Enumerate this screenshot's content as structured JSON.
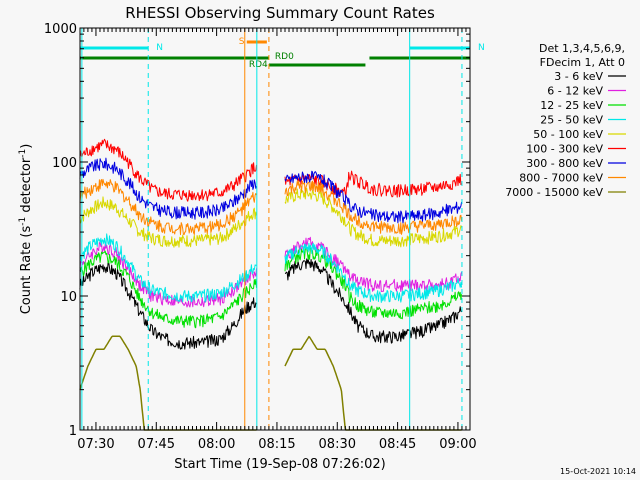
{
  "chart_data": {
    "type": "line",
    "title": "RHESSI Observing Summary Count Rates",
    "xlabel": "Start Time (19-Sep-08 07:26:02)",
    "ylabel": "Count Rate (s⁻¹ detector⁻¹)",
    "y_scale": "log",
    "ylim": [
      1,
      1000
    ],
    "xlim": [
      "07:26:02",
      "09:03:00"
    ],
    "x_ticks": [
      "07:30",
      "07:45",
      "08:00",
      "08:15",
      "08:30",
      "08:45",
      "09:00"
    ],
    "y_ticks": [
      "1",
      "10",
      "100",
      "1000"
    ],
    "legend_header": [
      "Det 1,3,4,5,6,9,",
      "FDecim 1, Att 0"
    ],
    "legend_position": "right",
    "footer_date": "15-Oct-2021 10:14",
    "segments": [
      {
        "start": "07:26",
        "end": "08:10"
      },
      {
        "start": "08:17",
        "end": "09:01"
      }
    ],
    "series": [
      {
        "name": "3 - 6 keV",
        "color": "#000000",
        "seg1": [
          [
            0,
            12
          ],
          [
            3,
            15
          ],
          [
            6,
            17
          ],
          [
            9,
            15
          ],
          [
            12,
            11
          ],
          [
            15,
            7.5
          ],
          [
            18,
            5.5
          ],
          [
            21,
            4.8
          ],
          [
            25,
            4.5
          ],
          [
            30,
            4.5
          ],
          [
            35,
            4.8
          ],
          [
            38,
            6
          ],
          [
            41,
            8
          ],
          [
            43,
            9
          ]
        ],
        "seg2": [
          [
            0,
            14
          ],
          [
            3,
            17
          ],
          [
            6,
            18
          ],
          [
            9,
            16
          ],
          [
            12,
            12
          ],
          [
            15,
            9
          ],
          [
            16,
            8
          ],
          [
            18,
            6
          ],
          [
            22,
            5
          ],
          [
            28,
            5
          ],
          [
            34,
            5.5
          ],
          [
            38,
            6
          ],
          [
            42,
            7
          ],
          [
            44,
            8
          ]
        ]
      },
      {
        "name": "6 - 12 keV",
        "color": "#e020e0",
        "seg1": [
          [
            0,
            17
          ],
          [
            3,
            21
          ],
          [
            6,
            24
          ],
          [
            9,
            21
          ],
          [
            12,
            16
          ],
          [
            15,
            12
          ],
          [
            18,
            10
          ],
          [
            21,
            9.5
          ],
          [
            25,
            9
          ],
          [
            30,
            9
          ],
          [
            35,
            9.5
          ],
          [
            38,
            11
          ],
          [
            41,
            13
          ],
          [
            43,
            15
          ]
        ],
        "seg2": [
          [
            0,
            20
          ],
          [
            3,
            23
          ],
          [
            6,
            25
          ],
          [
            9,
            23
          ],
          [
            12,
            19
          ],
          [
            15,
            16
          ],
          [
            16,
            14
          ],
          [
            18,
            13
          ],
          [
            22,
            12
          ],
          [
            28,
            12
          ],
          [
            34,
            12
          ],
          [
            38,
            12
          ],
          [
            42,
            13
          ],
          [
            44,
            14
          ]
        ]
      },
      {
        "name": "12 - 25 keV",
        "color": "#00e000",
        "seg1": [
          [
            0,
            15
          ],
          [
            3,
            18
          ],
          [
            6,
            20
          ],
          [
            9,
            18
          ],
          [
            12,
            14
          ],
          [
            15,
            9.5
          ],
          [
            18,
            7.5
          ],
          [
            21,
            6.8
          ],
          [
            25,
            6.5
          ],
          [
            30,
            6.5
          ],
          [
            35,
            7
          ],
          [
            38,
            8.5
          ],
          [
            41,
            10.5
          ],
          [
            43,
            12
          ]
        ],
        "seg2": [
          [
            0,
            17
          ],
          [
            3,
            20
          ],
          [
            6,
            21
          ],
          [
            9,
            20
          ],
          [
            12,
            16
          ],
          [
            15,
            12
          ],
          [
            16,
            10
          ],
          [
            18,
            8.5
          ],
          [
            22,
            7.5
          ],
          [
            28,
            7.5
          ],
          [
            34,
            8
          ],
          [
            38,
            8.5
          ],
          [
            42,
            9.5
          ],
          [
            44,
            10.5
          ]
        ]
      },
      {
        "name": "25 - 50 keV",
        "color": "#00e8e8",
        "seg1": [
          [
            0,
            20
          ],
          [
            3,
            24
          ],
          [
            6,
            27
          ],
          [
            9,
            24
          ],
          [
            12,
            18
          ],
          [
            15,
            13
          ],
          [
            18,
            11
          ],
          [
            21,
            10.5
          ],
          [
            25,
            10
          ],
          [
            30,
            10
          ],
          [
            35,
            10.5
          ],
          [
            38,
            12
          ],
          [
            41,
            14
          ],
          [
            43,
            16
          ]
        ],
        "seg2": [
          [
            0,
            19
          ],
          [
            3,
            22
          ],
          [
            6,
            23
          ],
          [
            9,
            22
          ],
          [
            12,
            18
          ],
          [
            15,
            14
          ],
          [
            16,
            12
          ],
          [
            18,
            11
          ],
          [
            22,
            10
          ],
          [
            28,
            10
          ],
          [
            34,
            10.5
          ],
          [
            38,
            11
          ],
          [
            42,
            12
          ],
          [
            44,
            13
          ]
        ]
      },
      {
        "name": "50 - 100 keV",
        "color": "#d8d800",
        "seg1": [
          [
            0,
            38
          ],
          [
            3,
            45
          ],
          [
            6,
            50
          ],
          [
            9,
            46
          ],
          [
            12,
            37
          ],
          [
            15,
            30
          ],
          [
            18,
            27
          ],
          [
            21,
            26
          ],
          [
            25,
            26
          ],
          [
            30,
            26
          ],
          [
            35,
            27
          ],
          [
            38,
            31
          ],
          [
            41,
            37
          ],
          [
            43,
            42
          ]
        ],
        "seg2": [
          [
            0,
            52
          ],
          [
            3,
            57
          ],
          [
            6,
            58
          ],
          [
            9,
            55
          ],
          [
            12,
            46
          ],
          [
            15,
            37
          ],
          [
            16,
            32
          ],
          [
            18,
            29
          ],
          [
            22,
            26
          ],
          [
            28,
            26
          ],
          [
            34,
            27
          ],
          [
            38,
            28
          ],
          [
            42,
            30
          ],
          [
            44,
            32
          ]
        ]
      },
      {
        "name": "100 - 300 keV",
        "color": "#ff0000",
        "seg1": [
          [
            0,
            110
          ],
          [
            3,
            125
          ],
          [
            6,
            135
          ],
          [
            9,
            124
          ],
          [
            12,
            100
          ],
          [
            15,
            75
          ],
          [
            18,
            62
          ],
          [
            21,
            58
          ],
          [
            25,
            57
          ],
          [
            30,
            57
          ],
          [
            35,
            59
          ],
          [
            38,
            66
          ],
          [
            41,
            78
          ],
          [
            43,
            90
          ]
        ],
        "seg2": [
          [
            0,
            70
          ],
          [
            3,
            74
          ],
          [
            6,
            75
          ],
          [
            9,
            72
          ],
          [
            12,
            64
          ],
          [
            15,
            58
          ],
          [
            16,
            80
          ],
          [
            18,
            72
          ],
          [
            22,
            63
          ],
          [
            28,
            61
          ],
          [
            34,
            63
          ],
          [
            38,
            65
          ],
          [
            42,
            70
          ],
          [
            44,
            75
          ]
        ]
      },
      {
        "name": "300 - 800 keV",
        "color": "#0000e0",
        "seg1": [
          [
            0,
            80
          ],
          [
            3,
            92
          ],
          [
            6,
            98
          ],
          [
            9,
            90
          ],
          [
            12,
            72
          ],
          [
            15,
            54
          ],
          [
            18,
            46
          ],
          [
            21,
            43
          ],
          [
            25,
            42
          ],
          [
            30,
            42
          ],
          [
            35,
            44
          ],
          [
            38,
            50
          ],
          [
            41,
            60
          ],
          [
            43,
            70
          ]
        ],
        "seg2": [
          [
            0,
            72
          ],
          [
            3,
            77
          ],
          [
            6,
            78
          ],
          [
            9,
            75
          ],
          [
            12,
            64
          ],
          [
            15,
            52
          ],
          [
            16,
            48
          ],
          [
            18,
            44
          ],
          [
            22,
            40
          ],
          [
            28,
            39
          ],
          [
            34,
            40
          ],
          [
            38,
            42
          ],
          [
            42,
            45
          ],
          [
            44,
            48
          ]
        ]
      },
      {
        "name": "800 - 7000 keV",
        "color": "#ff8800",
        "seg1": [
          [
            0,
            55
          ],
          [
            3,
            64
          ],
          [
            6,
            70
          ],
          [
            9,
            64
          ],
          [
            12,
            52
          ],
          [
            15,
            40
          ],
          [
            18,
            35
          ],
          [
            21,
            33
          ],
          [
            25,
            32
          ],
          [
            30,
            32
          ],
          [
            35,
            34
          ],
          [
            38,
            39
          ],
          [
            41,
            46
          ],
          [
            43,
            54
          ]
        ],
        "seg2": [
          [
            0,
            60
          ],
          [
            3,
            65
          ],
          [
            6,
            66
          ],
          [
            9,
            63
          ],
          [
            12,
            54
          ],
          [
            15,
            44
          ],
          [
            16,
            40
          ],
          [
            18,
            37
          ],
          [
            22,
            33
          ],
          [
            28,
            32
          ],
          [
            34,
            33
          ],
          [
            38,
            34
          ],
          [
            42,
            36
          ],
          [
            44,
            38
          ]
        ]
      },
      {
        "name": "7000 - 15000 keV",
        "color": "#808000",
        "seg1": [
          [
            0,
            2
          ],
          [
            2,
            3
          ],
          [
            4,
            4
          ],
          [
            6,
            4
          ],
          [
            8,
            5
          ],
          [
            10,
            5
          ],
          [
            12,
            4
          ],
          [
            14,
            3
          ],
          [
            15,
            2
          ],
          [
            16,
            1
          ]
        ],
        "seg2": [
          [
            0,
            3
          ],
          [
            2,
            4
          ],
          [
            4,
            4
          ],
          [
            6,
            5
          ],
          [
            8,
            4
          ],
          [
            10,
            4
          ],
          [
            12,
            3
          ],
          [
            14,
            2
          ],
          [
            15,
            1
          ]
        ]
      }
    ],
    "annotations": {
      "night_bars": [
        {
          "label": "N",
          "start": "07:26",
          "end": "07:43",
          "color": "#00e8e8"
        },
        {
          "label": "N",
          "start": "08:48",
          "end": "09:03",
          "color": "#00e8e8"
        }
      ],
      "saa_bars": [
        {
          "label": "S",
          "start": "08:07",
          "end": "08:12",
          "color": "#ff8800"
        }
      ],
      "decimation_bars": [
        {
          "label": "",
          "start": "07:26",
          "end": "08:10",
          "color": "#008000"
        },
        {
          "label": "RD4",
          "start": "08:10",
          "end": "08:13",
          "color": "#008000"
        },
        {
          "label": "RD0",
          "start": "08:13",
          "end": "08:37",
          "color": "#008000"
        },
        {
          "label": "",
          "start": "08:38",
          "end": "09:03",
          "color": "#008000"
        }
      ],
      "vertical_lines": [
        {
          "time": "07:26:30",
          "color": "#00e8e8",
          "style": "solid"
        },
        {
          "time": "07:43",
          "color": "#00e8e8",
          "style": "dash"
        },
        {
          "time": "08:07",
          "color": "#ff8800",
          "style": "solid"
        },
        {
          "time": "08:10",
          "color": "#00e8e8",
          "style": "solid"
        },
        {
          "time": "08:13",
          "color": "#ff8800",
          "style": "dash"
        },
        {
          "time": "08:48",
          "color": "#00e8e8",
          "style": "solid"
        },
        {
          "time": "09:01",
          "color": "#00e8e8",
          "style": "dash"
        }
      ]
    }
  }
}
